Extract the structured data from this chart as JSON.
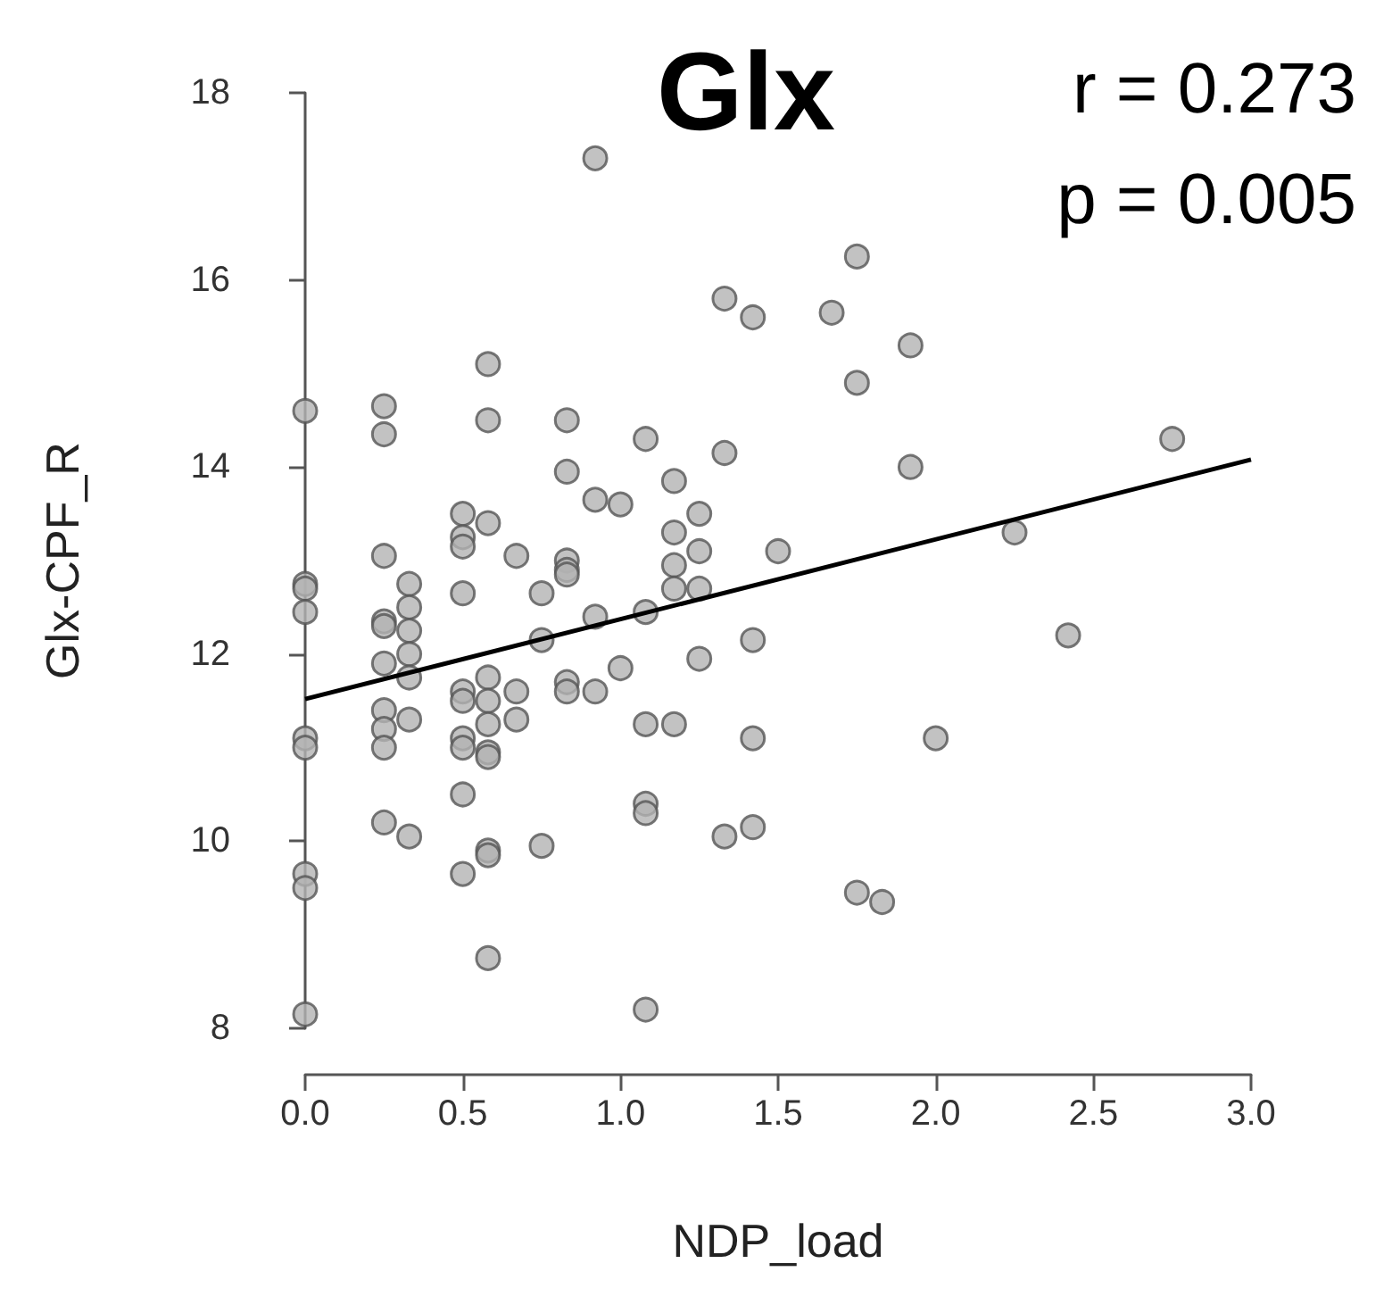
{
  "chart_data": {
    "type": "scatter",
    "title": "Glx",
    "xlabel": "NDP_load",
    "ylabel": "Glx-CPF_R",
    "annotations": [
      "r = 0.273",
      "p = 0.005"
    ],
    "xlim": [
      0,
      3
    ],
    "ylim": [
      8,
      18
    ],
    "xticks": [
      {
        "value": 0,
        "label": "0.0"
      },
      {
        "value": 0.5,
        "label": "0.5"
      },
      {
        "value": 1,
        "label": "1.0"
      },
      {
        "value": 1.5,
        "label": "1.5"
      },
      {
        "value": 2,
        "label": "2.0"
      },
      {
        "value": 2.5,
        "label": "2.5"
      },
      {
        "value": 3,
        "label": "3.0"
      }
    ],
    "yticks": [
      8,
      10,
      12,
      14,
      16,
      18
    ],
    "grid": false,
    "series": [
      {
        "marker": "circle",
        "color": "#b3b3b3",
        "x": [
          0,
          0,
          0,
          0,
          0,
          0,
          0,
          0,
          0,
          0.25,
          0.25,
          0.25,
          0.25,
          0.25,
          0.25,
          0.25,
          0.25,
          0.25,
          0.25,
          0.33,
          0.33,
          0.33,
          0.33,
          0.33,
          0.33,
          0.33,
          0.5,
          0.5,
          0.5,
          0.5,
          0.5,
          0.5,
          0.5,
          0.5,
          0.5,
          0.5,
          0.58,
          0.58,
          0.58,
          0.58,
          0.58,
          0.58,
          0.58,
          0.58,
          0.58,
          0.58,
          0.58,
          0.67,
          0.67,
          0.67,
          0.75,
          0.75,
          0.75,
          0.83,
          0.83,
          0.83,
          0.83,
          0.83,
          0.83,
          0.83,
          0.92,
          0.92,
          0.92,
          0.92,
          1,
          1,
          1.08,
          1.08,
          1.08,
          1.08,
          1.08,
          1.08,
          1.17,
          1.17,
          1.17,
          1.17,
          1.17,
          1.25,
          1.25,
          1.25,
          1.25,
          1.33,
          1.33,
          1.33,
          1.42,
          1.42,
          1.42,
          1.42,
          1.5,
          1.67,
          1.75,
          1.75,
          1.75,
          1.83,
          1.92,
          1.92,
          2,
          2.25,
          2.42,
          2.75
        ],
        "values": [
          14.6,
          12.75,
          12.7,
          12.45,
          11.1,
          11.0,
          9.65,
          9.5,
          8.15,
          14.65,
          14.35,
          13.05,
          12.35,
          12.3,
          11.9,
          11.4,
          11.2,
          11.0,
          10.2,
          12.75,
          12.5,
          12.25,
          12.0,
          11.75,
          11.3,
          10.05,
          13.5,
          13.25,
          13.15,
          12.65,
          11.6,
          11.5,
          11.1,
          11.0,
          10.5,
          9.65,
          15.1,
          14.5,
          13.4,
          11.75,
          11.5,
          11.25,
          10.95,
          10.9,
          9.9,
          9.85,
          8.75,
          13.05,
          11.6,
          11.3,
          12.65,
          12.15,
          9.95,
          14.5,
          13.95,
          13.0,
          12.9,
          12.85,
          11.7,
          11.6,
          17.3,
          13.65,
          12.4,
          11.6,
          13.6,
          11.85,
          14.3,
          12.45,
          11.25,
          10.4,
          10.3,
          8.2,
          13.85,
          13.3,
          12.95,
          12.7,
          11.25,
          13.5,
          13.1,
          12.7,
          11.95,
          15.8,
          14.15,
          10.05,
          15.6,
          12.15,
          11.1,
          10.15,
          13.1,
          15.65,
          16.25,
          14.9,
          9.45,
          9.35,
          15.3,
          14.0,
          11.1,
          13.3,
          12.2,
          14.3
        ]
      },
      {
        "type": "line",
        "color": "#000000",
        "x": [
          0,
          3
        ],
        "values": [
          11.52,
          14.08
        ]
      }
    ]
  }
}
